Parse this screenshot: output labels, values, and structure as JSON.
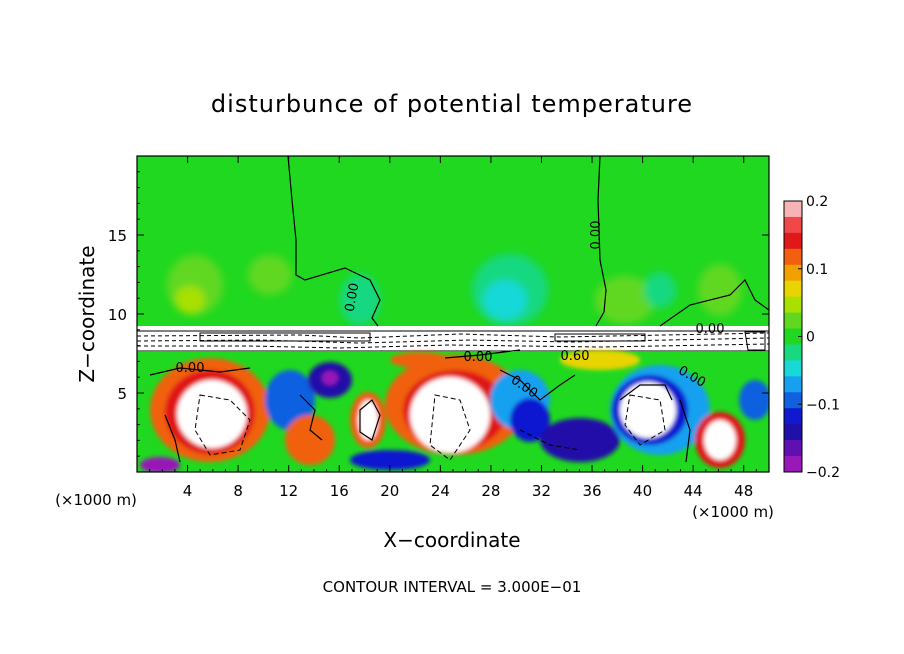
{
  "chart_data": {
    "type": "heatmap",
    "title": "disturbunce of potential temperature",
    "xlabel": "X−coordinate",
    "ylabel": "Z−coordinate",
    "x_unit_left": "(×1000 m)",
    "x_unit_right": "(×1000 m)",
    "xlim": [
      0,
      50
    ],
    "ylim": [
      0,
      20
    ],
    "x_ticks": [
      "4",
      "8",
      "12",
      "16",
      "20",
      "24",
      "28",
      "32",
      "36",
      "40",
      "44",
      "48"
    ],
    "x_tick_values": [
      4,
      8,
      12,
      16,
      20,
      24,
      28,
      32,
      36,
      40,
      44,
      48
    ],
    "y_ticks": [
      "5",
      "10",
      "15"
    ],
    "y_tick_values": [
      5,
      10,
      15
    ],
    "colorbar": {
      "min": -0.2,
      "max": 0.2,
      "tick_labels": [
        "0.2",
        "0.1",
        "0",
        "−0.1",
        "−0.2"
      ],
      "tick_values": [
        0.2,
        0.1,
        0,
        -0.1,
        -0.2
      ],
      "colors": [
        "#f7b4b4",
        "#f04848",
        "#e01818",
        "#f06010",
        "#f0a000",
        "#e8d400",
        "#a8e000",
        "#60d820",
        "#20d820",
        "#18d880",
        "#18d8d8",
        "#18a0f0",
        "#1060e0",
        "#1018d0",
        "#2010a8",
        "#6010b0",
        "#9818b8"
      ]
    },
    "contour_labels": [
      "0.00",
      "0.00",
      "0.00",
      "0.00",
      "0.00",
      "0.00",
      "0.60",
      "0.00"
    ],
    "footer": "CONTOUR INTERVAL = 3.000E−01"
  }
}
